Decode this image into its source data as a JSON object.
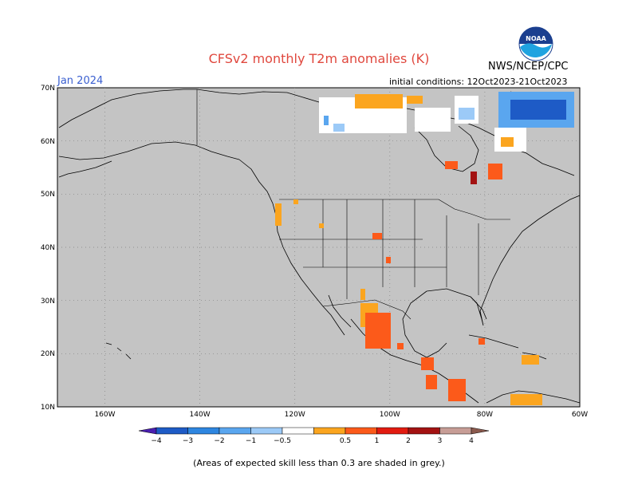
{
  "title": "CFSv2 monthly T2m anomalies (K)",
  "target_month": "Jan 2024",
  "initial_conditions": "initial conditions: 12Oct2023-21Oct2023",
  "agency": "NWS/NCEP/CPC",
  "logo_text": "NOAA",
  "footnote": "(Areas of expected skill less than 0.3 are shaded in grey.)",
  "map": {
    "lat_ticks": [
      "70N",
      "60N",
      "50N",
      "40N",
      "30N",
      "20N",
      "10N"
    ],
    "lon_ticks": [
      "160W",
      "140W",
      "120W",
      "100W",
      "80W",
      "60W"
    ],
    "background_color": "#c4c4c4",
    "gridlines": "dotted"
  },
  "legend": {
    "colors": [
      "#4a1fb0",
      "#1e5bc6",
      "#2e86e0",
      "#5aa6ef",
      "#9ccaf7",
      "#ffffff",
      "#fba51f",
      "#fc5a1a",
      "#e21b10",
      "#a31212",
      "#c79d96",
      "#8b5a4e"
    ],
    "labels": [
      "−4",
      "−3",
      "−2",
      "−1",
      "−0.5",
      "0.5",
      "1",
      "2",
      "3",
      "4"
    ]
  }
}
